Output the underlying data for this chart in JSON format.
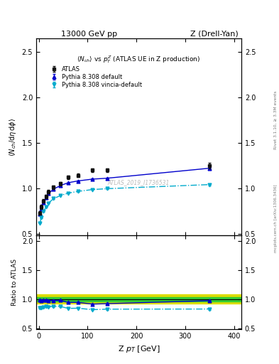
{
  "title_left": "13000 GeV pp",
  "title_right": "Z (Drell-Yan)",
  "plot_title": "<N_{ch}> vs p_{T}^{Z} (ATLAS UE in Z production)",
  "xlabel": "Z p_{T} [GeV]",
  "ylabel_main": "<N_{ch}/dη dφ>",
  "ylabel_ratio": "Ratio to ATLAS",
  "right_label": "Rivet 3.1.10, ≥ 3.3M events",
  "watermark": "ATLAS_2019_I1736531",
  "mcplots_label": "mcplots.cern.ch [arXiv:1306.3436]",
  "atlas_x": [
    2.5,
    5,
    10,
    15,
    20,
    30,
    45,
    60,
    80,
    110,
    140,
    350
  ],
  "atlas_y": [
    0.725,
    0.795,
    0.86,
    0.91,
    0.96,
    1.01,
    1.05,
    1.12,
    1.14,
    1.2,
    1.2,
    1.25
  ],
  "atlas_yerr": [
    0.02,
    0.02,
    0.02,
    0.02,
    0.02,
    0.02,
    0.02,
    0.02,
    0.02,
    0.02,
    0.02,
    0.03
  ],
  "py8def_x": [
    2.5,
    5,
    10,
    15,
    20,
    30,
    45,
    60,
    80,
    110,
    140,
    350
  ],
  "py8def_y": [
    0.72,
    0.775,
    0.845,
    0.895,
    0.94,
    0.99,
    1.03,
    1.06,
    1.08,
    1.1,
    1.11,
    1.22
  ],
  "py8def_yerr": [
    0.004,
    0.004,
    0.004,
    0.004,
    0.004,
    0.004,
    0.004,
    0.004,
    0.004,
    0.004,
    0.004,
    0.008
  ],
  "py8vincia_x": [
    2.5,
    5,
    10,
    15,
    20,
    30,
    45,
    60,
    80,
    110,
    140,
    350
  ],
  "py8vincia_y": [
    0.615,
    0.675,
    0.745,
    0.795,
    0.835,
    0.885,
    0.92,
    0.945,
    0.965,
    0.985,
    0.995,
    1.04
  ],
  "py8vincia_yerr": [
    0.004,
    0.004,
    0.004,
    0.004,
    0.004,
    0.004,
    0.004,
    0.004,
    0.004,
    0.004,
    0.004,
    0.008
  ],
  "ratio_py8def_y": [
    0.993,
    0.975,
    0.983,
    0.984,
    0.979,
    0.98,
    0.981,
    0.946,
    0.947,
    0.917,
    0.925,
    0.976
  ],
  "ratio_py8def_yerr": [
    0.008,
    0.008,
    0.008,
    0.008,
    0.008,
    0.008,
    0.008,
    0.008,
    0.008,
    0.008,
    0.008,
    0.012
  ],
  "ratio_py8vincia_y": [
    0.848,
    0.849,
    0.866,
    0.874,
    0.87,
    0.876,
    0.876,
    0.843,
    0.846,
    0.821,
    0.829,
    0.832
  ],
  "ratio_py8vincia_yerr": [
    0.008,
    0.008,
    0.008,
    0.008,
    0.008,
    0.008,
    0.008,
    0.008,
    0.008,
    0.008,
    0.008,
    0.012
  ],
  "atlas_band_green_half": 0.04,
  "atlas_band_yellow_half": 0.08,
  "color_atlas": "#111111",
  "color_py8def": "#0000cc",
  "color_py8vincia": "#00aacc",
  "color_green_band": "#33cc33",
  "color_yellow_band": "#dddd00",
  "ylim_main": [
    0.48,
    2.65
  ],
  "ylim_ratio": [
    0.48,
    2.1
  ],
  "xlim": [
    -5,
    415
  ],
  "yticks_main": [
    0.5,
    1.0,
    1.5,
    2.0,
    2.5
  ],
  "yticks_ratio": [
    0.5,
    1.0,
    1.5,
    2.0
  ],
  "xticks": [
    0,
    100,
    200,
    300,
    400
  ]
}
